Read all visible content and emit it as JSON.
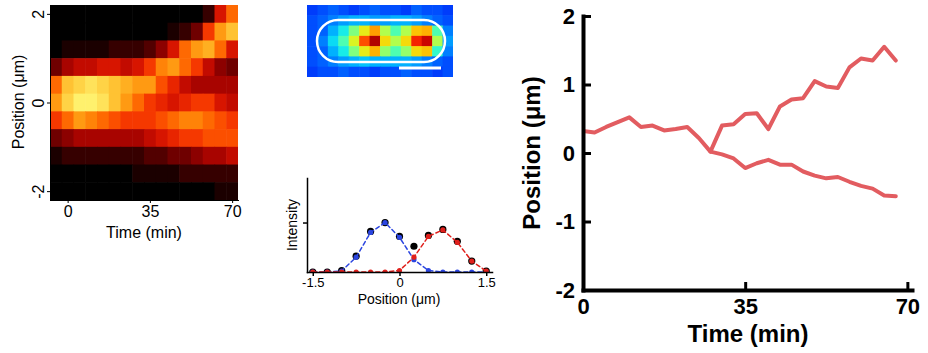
{
  "chart_data": [
    {
      "type": "heatmap",
      "x_label": "Time (min)",
      "y_label": "Position (μm)",
      "x": [
        -5,
        0,
        5,
        10,
        15,
        20,
        25,
        30,
        35,
        40,
        45,
        50,
        55,
        60,
        65,
        70
      ],
      "y": [
        2,
        1.6,
        1.2,
        0.8,
        0.4,
        0,
        -0.4,
        -0.8,
        -1.2,
        -1.6,
        -2
      ],
      "z": [
        [
          0,
          0,
          0,
          0,
          0,
          0,
          0,
          0,
          0,
          0,
          0,
          0,
          0,
          0.1,
          0.4,
          0.6
        ],
        [
          0,
          0,
          0,
          0,
          0,
          0,
          0,
          0,
          0,
          0,
          0.05,
          0.1,
          0.2,
          0.5,
          0.7,
          0.8
        ],
        [
          0,
          0.05,
          0.05,
          0.05,
          0.05,
          0.1,
          0.1,
          0.1,
          0.15,
          0.25,
          0.4,
          0.6,
          0.7,
          0.75,
          0.6,
          0.4
        ],
        [
          0.2,
          0.3,
          0.35,
          0.35,
          0.4,
          0.4,
          0.35,
          0.4,
          0.5,
          0.65,
          0.7,
          0.6,
          0.5,
          0.35,
          0.25,
          0.2
        ],
        [
          0.6,
          0.8,
          0.85,
          0.9,
          0.85,
          0.8,
          0.75,
          0.7,
          0.7,
          0.55,
          0.45,
          0.35,
          0.3,
          0.3,
          0.3,
          0.3
        ],
        [
          0.7,
          0.85,
          0.95,
          0.95,
          0.9,
          0.8,
          0.7,
          0.6,
          0.5,
          0.45,
          0.4,
          0.45,
          0.5,
          0.5,
          0.4,
          0.35
        ],
        [
          0.5,
          0.6,
          0.7,
          0.65,
          0.6,
          0.55,
          0.5,
          0.5,
          0.5,
          0.55,
          0.6,
          0.65,
          0.65,
          0.6,
          0.55,
          0.5
        ],
        [
          0.2,
          0.25,
          0.3,
          0.3,
          0.3,
          0.3,
          0.3,
          0.3,
          0.35,
          0.4,
          0.45,
          0.5,
          0.5,
          0.55,
          0.55,
          0.55
        ],
        [
          0.05,
          0.1,
          0.1,
          0.1,
          0.1,
          0.1,
          0.1,
          0.1,
          0.15,
          0.15,
          0.2,
          0.2,
          0.25,
          0.3,
          0.3,
          0.35
        ],
        [
          0,
          0,
          0,
          0,
          0,
          0,
          0,
          0.05,
          0.05,
          0.05,
          0.05,
          0.1,
          0.1,
          0.1,
          0.1,
          0.1
        ],
        [
          0,
          0,
          0,
          0,
          0,
          0,
          0,
          0,
          0,
          0,
          0,
          0,
          0,
          0,
          0.05,
          0.05
        ]
      ],
      "zlim": [
        0,
        1
      ],
      "xlim": [
        -7.5,
        72.5
      ],
      "ylim": [
        -2.2,
        2.2
      ],
      "xticks": [
        0,
        35,
        70
      ],
      "yticks": [
        -2,
        0,
        2
      ]
    },
    {
      "type": "heatmap",
      "z": [
        [
          0.18,
          0.2,
          0.22,
          0.2,
          0.18,
          0.2,
          0.22,
          0.2,
          0.2,
          0.18,
          0.22,
          0.2,
          0.2,
          0.18
        ],
        [
          0.2,
          0.22,
          0.25,
          0.28,
          0.3,
          0.3,
          0.28,
          0.28,
          0.3,
          0.3,
          0.28,
          0.25,
          0.22,
          0.2
        ],
        [
          0.2,
          0.22,
          0.3,
          0.38,
          0.5,
          0.62,
          0.72,
          0.55,
          0.45,
          0.55,
          0.68,
          0.7,
          0.45,
          0.25
        ],
        [
          0.2,
          0.25,
          0.35,
          0.45,
          0.6,
          0.8,
          0.95,
          0.65,
          0.55,
          0.65,
          0.85,
          0.92,
          0.55,
          0.28
        ],
        [
          0.2,
          0.22,
          0.3,
          0.38,
          0.5,
          0.62,
          0.7,
          0.52,
          0.45,
          0.52,
          0.65,
          0.68,
          0.42,
          0.25
        ],
        [
          0.2,
          0.22,
          0.25,
          0.28,
          0.3,
          0.32,
          0.3,
          0.3,
          0.3,
          0.3,
          0.28,
          0.25,
          0.22,
          0.2
        ],
        [
          0.18,
          0.2,
          0.2,
          0.22,
          0.2,
          0.2,
          0.18,
          0.2,
          0.2,
          0.22,
          0.2,
          0.2,
          0.18,
          0.2
        ]
      ],
      "zlim": [
        0,
        1
      ],
      "tick_labels": false
    },
    {
      "type": "line",
      "x_label": "Position (μm)",
      "y_label": "Intensity",
      "x": [
        -1.5,
        -1.25,
        -1,
        -0.75,
        -0.5,
        -0.25,
        0,
        0.25,
        0.5,
        0.75,
        1,
        1.25,
        1.5
      ],
      "series": [
        {
          "color": "#000000",
          "marker": "circle",
          "line_style": "none",
          "values": [
            0,
            0,
            0.03,
            0.32,
            0.82,
            1,
            0.72,
            0.52,
            0.74,
            0.86,
            0.62,
            0.22,
            0.02
          ]
        },
        {
          "color": "#2b45e0",
          "marker": "circle",
          "line_style": "dashed",
          "values": [
            0,
            0,
            0.02,
            0.3,
            0.8,
            1,
            0.7,
            0.25,
            0.03,
            0,
            0,
            0,
            0
          ]
        },
        {
          "color": "#e0201c",
          "marker": "circle",
          "line_style": "dashed",
          "values": [
            0,
            0,
            0,
            0,
            0,
            0,
            0.03,
            0.3,
            0.72,
            0.85,
            0.6,
            0.22,
            0.02
          ]
        }
      ],
      "xlim": [
        -1.6,
        1.6
      ],
      "ylim": [
        0,
        1.9
      ],
      "xticks": [
        -1.5,
        0,
        1.5
      ],
      "yticks": [
        1
      ],
      "tick_labels": "x"
    },
    {
      "type": "line",
      "x_label": "Time (min)",
      "y_label": "Position (μm)",
      "x": [
        0,
        2.5,
        5,
        7.5,
        10,
        12.5,
        15,
        17.5,
        20,
        22.5,
        25,
        27.5,
        30,
        32.5,
        35,
        37.5,
        40,
        42.5,
        45,
        47.5,
        50,
        52.5,
        55,
        57.5,
        60,
        62.5,
        65,
        67.5
      ],
      "series": [
        {
          "color": "#e25c60",
          "line_style": "solid",
          "values": [
            0.32,
            0.3,
            0.38,
            0.45,
            0.52,
            0.38,
            0.4,
            0.33,
            0.35,
            0.38,
            0.22,
            0.02,
            0.4,
            0.42,
            0.57,
            0.58,
            0.35,
            0.68,
            0.78,
            0.8,
            1.05,
            0.97,
            0.95,
            1.25,
            1.38,
            1.35,
            1.55,
            1.35
          ]
        },
        {
          "color": "#e25c60",
          "line_style": "solid",
          "values": [
            null,
            null,
            null,
            null,
            null,
            null,
            null,
            null,
            null,
            null,
            null,
            0.02,
            -0.02,
            -0.08,
            -0.22,
            -0.15,
            -0.1,
            -0.17,
            -0.17,
            -0.27,
            -0.33,
            -0.37,
            -0.35,
            -0.42,
            -0.48,
            -0.52,
            -0.62,
            -0.63
          ]
        }
      ],
      "xlim": [
        0,
        71
      ],
      "ylim": [
        -2,
        2
      ],
      "xticks": [
        0,
        35,
        70
      ],
      "yticks": [
        -2,
        -1,
        0,
        1,
        2
      ]
    }
  ]
}
